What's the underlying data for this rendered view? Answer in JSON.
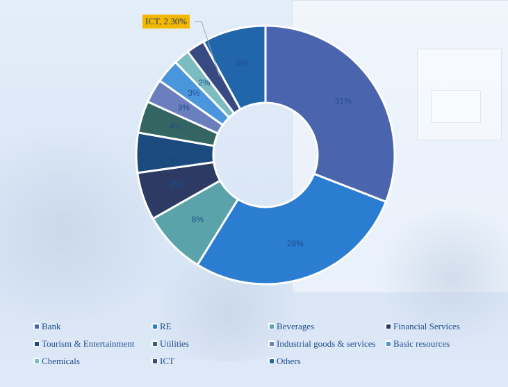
{
  "chart_data": {
    "type": "pie",
    "variant": "donut",
    "title": "",
    "categories": [
      "Bank",
      "RE",
      "Beverages",
      "Financial Services",
      "Tourism & Entertainment",
      "Utilities",
      "Industrial goods & services",
      "Basic resources",
      "Chemicals",
      "ICT",
      "Others"
    ],
    "values": [
      31,
      28,
      8,
      6,
      5,
      4,
      3,
      3,
      2,
      2.3,
      8
    ],
    "data_labels": [
      "31%",
      "28%",
      "8%",
      "6%",
      "5%",
      "4%",
      "3%",
      "3%",
      "2%",
      "",
      "8%"
    ],
    "colors": [
      "#4a65ad",
      "#2b7dd2",
      "#5ba3aa",
      "#2d3a63",
      "#1b4a7e",
      "#356563",
      "#6b7fbf",
      "#4a96dc",
      "#7bbcc0",
      "#374a82",
      "#2166ab"
    ],
    "annotations": [
      {
        "target": "ICT",
        "text": "ICT, 2.30%"
      }
    ],
    "legend_position": "bottom",
    "start_angle_deg": 0,
    "direction": "clockwise"
  },
  "callout": {
    "text": "ICT, 2.30%"
  },
  "legend": {
    "items": [
      {
        "label": "Bank",
        "color": "#4a65ad"
      },
      {
        "label": "RE",
        "color": "#2b7dd2"
      },
      {
        "label": "Beverages",
        "color": "#5ba3aa"
      },
      {
        "label": "Financial Services",
        "color": "#2d3a63"
      },
      {
        "label": "Tourism & Entertainment",
        "color": "#1b4a7e"
      },
      {
        "label": "Utilities",
        "color": "#356563"
      },
      {
        "label": "Industrial goods & services",
        "color": "#6b7fbf"
      },
      {
        "label": "Basic resources",
        "color": "#4a96dc"
      },
      {
        "label": "Chemicals",
        "color": "#7bbcc0"
      },
      {
        "label": "ICT",
        "color": "#374a82"
      },
      {
        "label": "Others",
        "color": "#2166ab"
      }
    ]
  }
}
